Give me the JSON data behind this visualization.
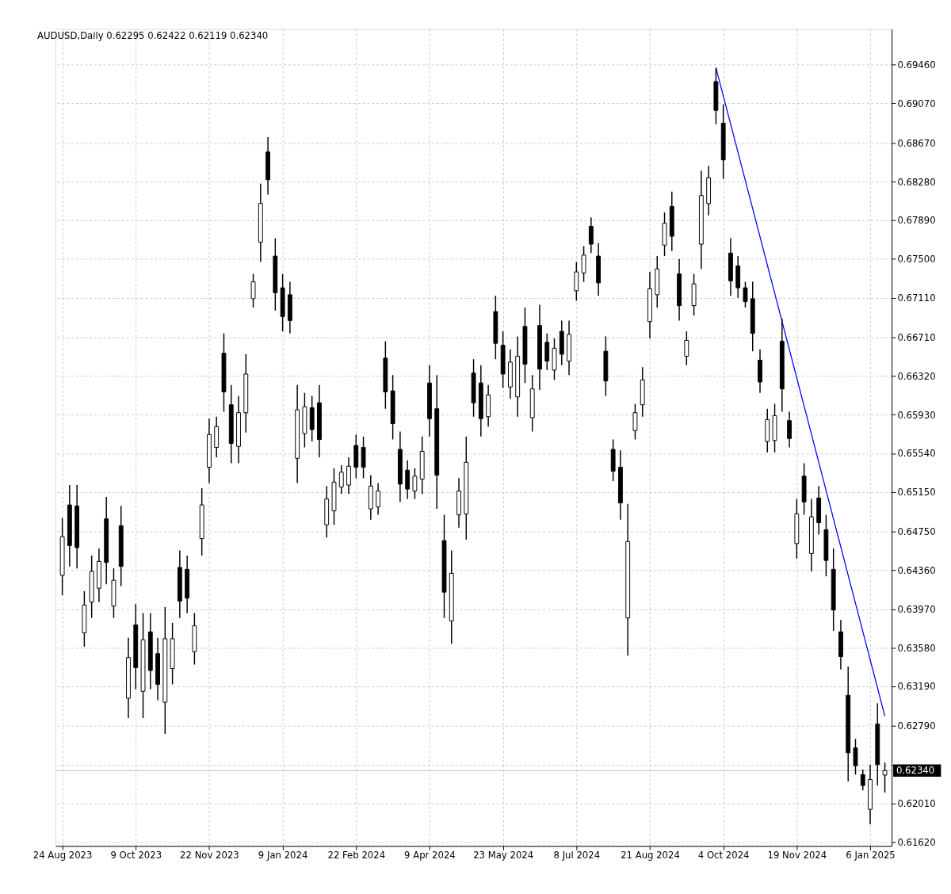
{
  "chart_data": {
    "type": "candlestick",
    "title": "AUDUSD,Daily  0.62295 0.62422 0.62119 0.62340",
    "color": "#000000",
    "categories": [
      "24 Aug 2023",
      null,
      null,
      null,
      null,
      null,
      null,
      null,
      null,
      null,
      "9 Oct 2023",
      null,
      null,
      null,
      null,
      null,
      null,
      null,
      null,
      null,
      "22 Nov 2023",
      null,
      null,
      null,
      null,
      null,
      null,
      null,
      null,
      null,
      "9 Jan 2024",
      null,
      null,
      null,
      null,
      null,
      null,
      null,
      null,
      null,
      "22 Feb 2024",
      null,
      null,
      null,
      null,
      null,
      null,
      null,
      null,
      null,
      "9 Apr 2024",
      null,
      null,
      null,
      null,
      null,
      null,
      null,
      null,
      null,
      "23 May 2024",
      null,
      null,
      null,
      null,
      null,
      null,
      null,
      null,
      null,
      "8 Jul 2024",
      null,
      null,
      null,
      null,
      null,
      null,
      null,
      null,
      null,
      "21 Aug 2024",
      null,
      null,
      null,
      null,
      null,
      null,
      null,
      null,
      null,
      "4 Oct 2024",
      null,
      null,
      null,
      null,
      null,
      null,
      null,
      null,
      null,
      "19 Nov 2024",
      null,
      null,
      null,
      null,
      null,
      null,
      null,
      null,
      null,
      "6 Jan 2025",
      null,
      null
    ],
    "ohlc": [
      [
        0.6431,
        0.6489,
        0.6411,
        0.647
      ],
      [
        0.6502,
        0.6522,
        0.644,
        0.6461
      ],
      [
        0.6501,
        0.6522,
        0.6438,
        0.6459
      ],
      [
        0.6373,
        0.6415,
        0.6359,
        0.6401
      ],
      [
        0.6404,
        0.6451,
        0.6388,
        0.6435
      ],
      [
        0.6418,
        0.6458,
        0.6404,
        0.6445
      ],
      [
        0.6488,
        0.651,
        0.6422,
        0.6444
      ],
      [
        0.64,
        0.6438,
        0.6388,
        0.6426
      ],
      [
        0.6481,
        0.6501,
        0.642,
        0.644
      ],
      [
        0.6307,
        0.6368,
        0.6287,
        0.6348
      ],
      [
        0.6381,
        0.6402,
        0.6316,
        0.6338
      ],
      [
        0.6314,
        0.6393,
        0.6287,
        0.6366
      ],
      [
        0.6374,
        0.6393,
        0.6316,
        0.6335
      ],
      [
        0.6352,
        0.6368,
        0.6305,
        0.6321
      ],
      [
        0.6303,
        0.6399,
        0.6271,
        0.6367
      ],
      [
        0.6337,
        0.6383,
        0.6321,
        0.6367
      ],
      [
        0.6439,
        0.6456,
        0.6388,
        0.6405
      ],
      [
        0.6437,
        0.6451,
        0.6393,
        0.6408
      ],
      [
        0.6354,
        0.6393,
        0.6341,
        0.638
      ],
      [
        0.6468,
        0.6519,
        0.6451,
        0.6502
      ],
      [
        0.654,
        0.6589,
        0.6524,
        0.6573
      ],
      [
        0.656,
        0.6591,
        0.655,
        0.6581
      ],
      [
        0.6655,
        0.6675,
        0.6596,
        0.6616
      ],
      [
        0.6603,
        0.6623,
        0.6544,
        0.6564
      ],
      [
        0.6561,
        0.6612,
        0.6544,
        0.6595
      ],
      [
        0.6595,
        0.6654,
        0.6575,
        0.6634
      ],
      [
        0.671,
        0.6735,
        0.6701,
        0.6727
      ],
      [
        0.6767,
        0.6826,
        0.6747,
        0.6806
      ],
      [
        0.6858,
        0.6873,
        0.6815,
        0.683
      ],
      [
        0.6753,
        0.6771,
        0.6698,
        0.6716
      ],
      [
        0.6721,
        0.6735,
        0.6677,
        0.6692
      ],
      [
        0.6714,
        0.6727,
        0.6675,
        0.6688
      ],
      [
        0.6549,
        0.6623,
        0.6524,
        0.6598
      ],
      [
        0.6574,
        0.6615,
        0.656,
        0.6601
      ],
      [
        0.66,
        0.6612,
        0.6566,
        0.6578
      ],
      [
        0.6605,
        0.6623,
        0.655,
        0.6568
      ],
      [
        0.6482,
        0.6521,
        0.6469,
        0.6508
      ],
      [
        0.6496,
        0.6539,
        0.6482,
        0.6525
      ],
      [
        0.652,
        0.6542,
        0.6513,
        0.6535
      ],
      [
        0.6522,
        0.655,
        0.6513,
        0.6541
      ],
      [
        0.6562,
        0.6573,
        0.6529,
        0.654
      ],
      [
        0.656,
        0.6571,
        0.6529,
        0.654
      ],
      [
        0.6498,
        0.6532,
        0.6487,
        0.6521
      ],
      [
        0.65,
        0.6524,
        0.6492,
        0.6516
      ],
      [
        0.665,
        0.6667,
        0.6599,
        0.6616
      ],
      [
        0.6617,
        0.6633,
        0.6568,
        0.6584
      ],
      [
        0.6558,
        0.6576,
        0.6505,
        0.6523
      ],
      [
        0.6537,
        0.6547,
        0.6508,
        0.6518
      ],
      [
        0.6516,
        0.6539,
        0.6508,
        0.6531
      ],
      [
        0.6528,
        0.6571,
        0.6513,
        0.6556
      ],
      [
        0.6625,
        0.6643,
        0.6571,
        0.6589
      ],
      [
        0.6599,
        0.6633,
        0.6498,
        0.6532
      ],
      [
        0.6466,
        0.6492,
        0.6388,
        0.6414
      ],
      [
        0.6385,
        0.6456,
        0.6362,
        0.6433
      ],
      [
        0.6492,
        0.6529,
        0.6479,
        0.6516
      ],
      [
        0.6493,
        0.6571,
        0.6467,
        0.6545
      ],
      [
        0.6635,
        0.6649,
        0.6591,
        0.6605
      ],
      [
        0.6625,
        0.6643,
        0.6571,
        0.6589
      ],
      [
        0.6591,
        0.6623,
        0.6581,
        0.6613
      ],
      [
        0.6697,
        0.6713,
        0.6649,
        0.6665
      ],
      [
        0.6663,
        0.6677,
        0.662,
        0.6634
      ],
      [
        0.6621,
        0.6659,
        0.6609,
        0.6646
      ],
      [
        0.6611,
        0.6672,
        0.6591,
        0.6652
      ],
      [
        0.6682,
        0.6701,
        0.6625,
        0.6644
      ],
      [
        0.659,
        0.6633,
        0.6576,
        0.6619
      ],
      [
        0.6683,
        0.6704,
        0.6618,
        0.6639
      ],
      [
        0.6666,
        0.6675,
        0.6638,
        0.6647
      ],
      [
        0.6638,
        0.667,
        0.6628,
        0.666
      ],
      [
        0.6677,
        0.6688,
        0.6643,
        0.6654
      ],
      [
        0.6647,
        0.6688,
        0.6633,
        0.6674
      ],
      [
        0.6718,
        0.6747,
        0.6708,
        0.6737
      ],
      [
        0.6736,
        0.6763,
        0.6727,
        0.6754
      ],
      [
        0.6783,
        0.6792,
        0.6756,
        0.6765
      ],
      [
        0.6753,
        0.6766,
        0.6713,
        0.6726
      ],
      [
        0.6657,
        0.6672,
        0.6612,
        0.6627
      ],
      [
        0.6558,
        0.6568,
        0.6526,
        0.6536
      ],
      [
        0.654,
        0.6557,
        0.6487,
        0.6504
      ],
      [
        0.6388,
        0.6503,
        0.635,
        0.6465
      ],
      [
        0.6577,
        0.6604,
        0.6568,
        0.6595
      ],
      [
        0.6603,
        0.6641,
        0.6591,
        0.6628
      ],
      [
        0.6687,
        0.6737,
        0.667,
        0.672
      ],
      [
        0.6714,
        0.6753,
        0.6701,
        0.674
      ],
      [
        0.6764,
        0.6797,
        0.6753,
        0.6786
      ],
      [
        0.6803,
        0.6818,
        0.6758,
        0.6773
      ],
      [
        0.6735,
        0.675,
        0.6688,
        0.6703
      ],
      [
        0.6652,
        0.6677,
        0.6643,
        0.6668
      ],
      [
        0.6703,
        0.6735,
        0.6693,
        0.6725
      ],
      [
        0.6765,
        0.6839,
        0.674,
        0.6814
      ],
      [
        0.6806,
        0.6844,
        0.6794,
        0.6832
      ],
      [
        0.6929,
        0.6943,
        0.6886,
        0.69
      ],
      [
        0.6887,
        0.6906,
        0.6831,
        0.685
      ],
      [
        0.6756,
        0.6771,
        0.6713,
        0.6728
      ],
      [
        0.6743,
        0.6753,
        0.6711,
        0.6721
      ],
      [
        0.6721,
        0.6727,
        0.6701,
        0.6707
      ],
      [
        0.671,
        0.6727,
        0.6657,
        0.6675
      ],
      [
        0.6648,
        0.6659,
        0.6615,
        0.6626
      ],
      [
        0.6566,
        0.6599,
        0.6555,
        0.6588
      ],
      [
        0.6567,
        0.6604,
        0.6555,
        0.6592
      ],
      [
        0.6667,
        0.669,
        0.6596,
        0.6619
      ],
      [
        0.6587,
        0.6596,
        0.656,
        0.6569
      ],
      [
        0.6463,
        0.6508,
        0.6448,
        0.6493
      ],
      [
        0.6531,
        0.6544,
        0.6492,
        0.6505
      ],
      [
        0.6453,
        0.6508,
        0.6435,
        0.649
      ],
      [
        0.6509,
        0.6521,
        0.6472,
        0.6484
      ],
      [
        0.6477,
        0.6492,
        0.643,
        0.6446
      ],
      [
        0.6437,
        0.6458,
        0.6375,
        0.6396
      ],
      [
        0.6374,
        0.6386,
        0.6336,
        0.6349
      ],
      [
        0.631,
        0.6339,
        0.6223,
        0.6252
      ],
      [
        0.6257,
        0.6266,
        0.623,
        0.6239
      ],
      [
        0.623,
        0.6235,
        0.6214,
        0.6219
      ],
      [
        0.6195,
        0.624,
        0.618,
        0.6225
      ],
      [
        0.6281,
        0.6302,
        0.6219,
        0.624
      ],
      [
        0.62295,
        0.62422,
        0.62119,
        0.6234
      ]
    ],
    "series": [
      {
        "type": "line",
        "color": "#0000ff",
        "values": [
          null,
          null,
          null,
          null,
          null,
          null,
          null,
          null,
          null,
          null,
          null,
          null,
          null,
          null,
          null,
          null,
          null,
          null,
          null,
          null,
          null,
          null,
          null,
          null,
          null,
          null,
          null,
          null,
          null,
          null,
          null,
          null,
          null,
          null,
          null,
          null,
          null,
          null,
          null,
          null,
          null,
          null,
          null,
          null,
          null,
          null,
          null,
          null,
          null,
          null,
          null,
          null,
          null,
          null,
          null,
          null,
          null,
          null,
          null,
          null,
          null,
          null,
          null,
          null,
          null,
          null,
          null,
          null,
          null,
          null,
          null,
          null,
          null,
          null,
          null,
          null,
          null,
          null,
          null,
          null,
          null,
          null,
          null,
          null,
          null,
          null,
          null,
          null,
          null,
          0.6943,
          null,
          null,
          null,
          null,
          null,
          null,
          null,
          null,
          null,
          null,
          null,
          null,
          null,
          null,
          null,
          null,
          null,
          null,
          null,
          null,
          null,
          null,
          0.6289
        ]
      }
    ],
    "ylim": [
      0.6158,
      0.6982
    ],
    "yticks": [
      {
        "value": 0.6162,
        "label": "0.61620"
      },
      {
        "value": 0.6201,
        "label": "0.62010"
      },
      {
        "value": 0.624,
        "label": null
      },
      {
        "value": 0.6279,
        "label": "0.62790"
      },
      {
        "value": 0.6319,
        "label": "0.63190"
      },
      {
        "value": 0.6358,
        "label": "0.63580"
      },
      {
        "value": 0.6397,
        "label": "0.63970"
      },
      {
        "value": 0.6436,
        "label": "0.64360"
      },
      {
        "value": 0.6475,
        "label": "0.64750"
      },
      {
        "value": 0.6515,
        "label": "0.65150"
      },
      {
        "value": 0.6554,
        "label": "0.65540"
      },
      {
        "value": 0.6593,
        "label": "0.65930"
      },
      {
        "value": 0.6632,
        "label": "0.66320"
      },
      {
        "value": 0.6671,
        "label": "0.66710"
      },
      {
        "value": 0.6711,
        "label": "0.67110"
      },
      {
        "value": 0.675,
        "label": "0.67500"
      },
      {
        "value": 0.6789,
        "label": "0.67890"
      },
      {
        "value": 0.6828,
        "label": "0.68280"
      },
      {
        "value": 0.6867,
        "label": "0.68670"
      },
      {
        "value": 0.6907,
        "label": "0.69070"
      },
      {
        "value": 0.6946,
        "label": "0.69460"
      }
    ],
    "ref_lines": [
      {
        "axis": "y",
        "value": 0.6234,
        "label": "0.62340",
        "color": "#c0c0c0"
      }
    ],
    "grid": true
  }
}
